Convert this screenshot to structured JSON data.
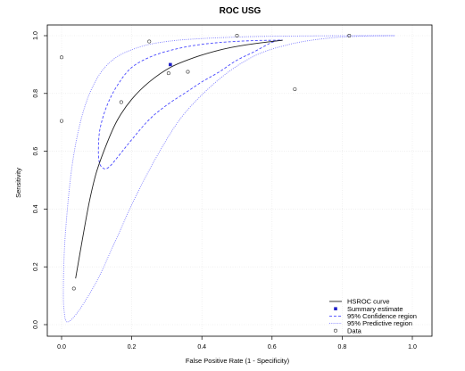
{
  "chart_data": {
    "type": "scatter",
    "title": "ROC USG",
    "xlabel": "False Positive Rate (1 - Specificity)",
    "ylabel": "Sensitivity",
    "xlim": [
      0,
      1
    ],
    "ylim": [
      0,
      1
    ],
    "x_ticks": [
      "0.0",
      "0.2",
      "0.4",
      "0.6",
      "0.8",
      "1.0"
    ],
    "y_ticks": [
      "0.0",
      "0.2",
      "0.4",
      "0.6",
      "0.8",
      "1.0"
    ],
    "grid": true,
    "legend_position": "bottom-right",
    "colors": {
      "curve": "#222222",
      "summary": "#1f1fc8",
      "confidence": "#4a4aff",
      "predictive": "#7a7aff",
      "data": "#333333"
    },
    "series": [
      {
        "name": "Data",
        "kind": "points",
        "points": [
          [
            0.0,
            0.925
          ],
          [
            0.0,
            0.705
          ],
          [
            0.035,
            0.125
          ],
          [
            0.17,
            0.77
          ],
          [
            0.25,
            0.98
          ],
          [
            0.305,
            0.87
          ],
          [
            0.36,
            0.875
          ],
          [
            0.5,
            1.0
          ],
          [
            0.665,
            0.815
          ],
          [
            0.82,
            1.0
          ]
        ]
      },
      {
        "name": "Summary estimate",
        "kind": "point",
        "points": [
          [
            0.31,
            0.9
          ]
        ]
      },
      {
        "name": "HSROC curve",
        "kind": "line",
        "points": [
          [
            0.04,
            0.16
          ],
          [
            0.06,
            0.3
          ],
          [
            0.08,
            0.43
          ],
          [
            0.1,
            0.53
          ],
          [
            0.13,
            0.63
          ],
          [
            0.16,
            0.71
          ],
          [
            0.2,
            0.78
          ],
          [
            0.25,
            0.84
          ],
          [
            0.31,
            0.89
          ],
          [
            0.38,
            0.925
          ],
          [
            0.45,
            0.95
          ],
          [
            0.52,
            0.967
          ],
          [
            0.6,
            0.98
          ],
          [
            0.63,
            0.984
          ]
        ]
      },
      {
        "name": "95% Confidence region",
        "kind": "closed-path",
        "points": [
          [
            0.63,
            0.985
          ],
          [
            0.6,
            0.977
          ],
          [
            0.55,
            0.945
          ],
          [
            0.5,
            0.915
          ],
          [
            0.45,
            0.875
          ],
          [
            0.4,
            0.84
          ],
          [
            0.35,
            0.8
          ],
          [
            0.3,
            0.76
          ],
          [
            0.25,
            0.71
          ],
          [
            0.2,
            0.64
          ],
          [
            0.16,
            0.58
          ],
          [
            0.135,
            0.545
          ],
          [
            0.12,
            0.54
          ],
          [
            0.108,
            0.56
          ],
          [
            0.105,
            0.61
          ],
          [
            0.11,
            0.68
          ],
          [
            0.13,
            0.76
          ],
          [
            0.16,
            0.83
          ],
          [
            0.2,
            0.89
          ],
          [
            0.26,
            0.93
          ],
          [
            0.33,
            0.955
          ],
          [
            0.4,
            0.97
          ],
          [
            0.47,
            0.978
          ],
          [
            0.55,
            0.983
          ],
          [
            0.6,
            0.984
          ],
          [
            0.63,
            0.985
          ]
        ]
      },
      {
        "name": "95% Predictive region",
        "kind": "closed-path",
        "points": [
          [
            0.01,
            0.02
          ],
          [
            0.005,
            0.1
          ],
          [
            0.01,
            0.3
          ],
          [
            0.03,
            0.55
          ],
          [
            0.06,
            0.73
          ],
          [
            0.1,
            0.85
          ],
          [
            0.15,
            0.92
          ],
          [
            0.22,
            0.96
          ],
          [
            0.3,
            0.98
          ],
          [
            0.4,
            0.99
          ],
          [
            0.55,
            0.997
          ],
          [
            0.7,
            0.999
          ],
          [
            0.82,
            1.0
          ],
          [
            0.95,
            1.0
          ],
          [
            0.85,
            0.998
          ],
          [
            0.75,
            0.99
          ],
          [
            0.65,
            0.97
          ],
          [
            0.55,
            0.93
          ],
          [
            0.45,
            0.85
          ],
          [
            0.35,
            0.73
          ],
          [
            0.28,
            0.6
          ],
          [
            0.21,
            0.44
          ],
          [
            0.15,
            0.28
          ],
          [
            0.1,
            0.15
          ],
          [
            0.05,
            0.05
          ],
          [
            0.02,
            0.01
          ],
          [
            0.01,
            0.02
          ]
        ]
      }
    ],
    "legend": [
      {
        "label": "HSROC curve",
        "symbol": "line"
      },
      {
        "label": "Summary estimate",
        "symbol": "square"
      },
      {
        "label": "95% Confidence region",
        "symbol": "dashed"
      },
      {
        "label": "95% Predictive region",
        "symbol": "dotted"
      },
      {
        "label": "Data",
        "symbol": "circle"
      }
    ]
  }
}
